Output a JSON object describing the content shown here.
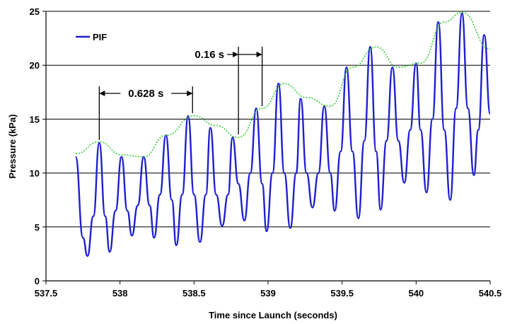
{
  "chart_data": {
    "type": "line",
    "xlabel": "Time since Launch (seconds)",
    "ylabel": "Pressure (kPa)",
    "xlim": [
      537.5,
      540.5
    ],
    "ylim": [
      0,
      25
    ],
    "xticks": [
      537.5,
      538,
      538.5,
      539,
      539.5,
      540,
      540.5
    ],
    "xtick_labels": [
      "537.5",
      "538",
      "538.5",
      "539",
      "539.5",
      "540",
      "540.5"
    ],
    "yticks": [
      0,
      5,
      10,
      15,
      20,
      25
    ],
    "ytick_labels": [
      "0",
      "5",
      "10",
      "15",
      "20",
      "25"
    ],
    "grid": "horizontal",
    "legend": {
      "position": "top-left"
    },
    "colors": {
      "series": "#1f1fd0",
      "envelope": "#33cc33"
    },
    "series": [
      {
        "name": "PIF",
        "style": "solid",
        "x": [
          537.7,
          537.75,
          537.78,
          537.82,
          537.86,
          537.9,
          537.93,
          537.97,
          538.01,
          538.05,
          538.08,
          538.12,
          538.16,
          538.2,
          538.23,
          538.27,
          538.31,
          538.35,
          538.38,
          538.42,
          538.46,
          538.5,
          538.54,
          538.58,
          538.61,
          538.65,
          538.69,
          538.73,
          538.76,
          538.8,
          538.84,
          538.88,
          538.92,
          538.96,
          538.99,
          539.03,
          539.07,
          539.11,
          539.15,
          539.19,
          539.22,
          539.26,
          539.3,
          539.34,
          539.38,
          539.42,
          539.45,
          539.49,
          539.53,
          539.57,
          539.61,
          539.65,
          539.69,
          539.73,
          539.76,
          539.8,
          539.84,
          539.88,
          539.92,
          539.96,
          540.0,
          540.03,
          540.07,
          540.11,
          540.15,
          540.19,
          540.23,
          540.27,
          540.31,
          540.35,
          540.39,
          540.42,
          540.46,
          540.5
        ],
        "values": [
          11.5,
          4.0,
          2.3,
          6.0,
          12.8,
          6.0,
          2.7,
          6.5,
          11.5,
          6.5,
          4.2,
          7.0,
          11.5,
          7.0,
          4.0,
          8.0,
          13.5,
          7.5,
          3.3,
          8.0,
          15.3,
          8.0,
          3.6,
          8.0,
          14.2,
          8.0,
          5.1,
          8.0,
          13.3,
          9.0,
          5.6,
          10.0,
          16.0,
          9.0,
          4.6,
          10.0,
          18.3,
          10.0,
          4.9,
          10.0,
          16.9,
          10.0,
          6.8,
          10.0,
          16.2,
          10.0,
          6.5,
          12.0,
          19.8,
          12.0,
          5.8,
          13.0,
          21.7,
          12.0,
          6.6,
          13.0,
          19.8,
          13.0,
          9.1,
          14.0,
          20.2,
          14.0,
          8.2,
          15.0,
          24.0,
          14.0,
          7.5,
          16.0,
          24.8,
          16.0,
          9.8,
          14.0,
          22.8,
          15.5
        ]
      },
      {
        "name": "",
        "style": "dotted",
        "x": [
          537.7,
          537.86,
          538.01,
          538.16,
          538.31,
          538.5,
          538.65,
          538.8,
          538.96,
          539.11,
          539.26,
          539.42,
          539.57,
          539.73,
          539.88,
          540.03,
          540.19,
          540.31,
          540.5
        ],
        "values": [
          11.8,
          12.9,
          11.7,
          11.5,
          13.5,
          15.3,
          14.4,
          13.3,
          16.0,
          18.3,
          17.0,
          16.2,
          19.8,
          21.7,
          19.8,
          20.2,
          24.0,
          24.9,
          21.5
        ]
      }
    ],
    "annotations": [
      {
        "label": "0.628 s",
        "x_start": 537.86,
        "x_end": 538.49
      },
      {
        "label": "0.16 s",
        "x_start": 538.8,
        "x_end": 538.96
      }
    ]
  }
}
